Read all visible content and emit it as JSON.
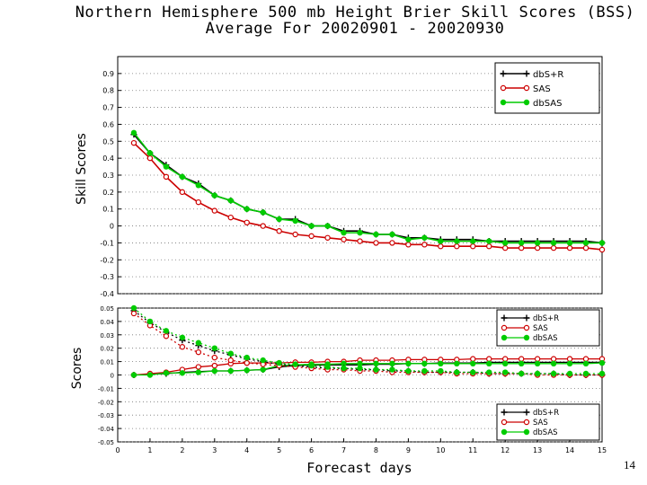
{
  "page_number": "14",
  "chart_data": [
    {
      "type": "line",
      "title": "Northern Hemisphere 500 mb Height Brier Skill Scores (BSS)",
      "subtitle": "Average For 20020901 - 20020930",
      "xlabel": "",
      "ylabel": "Skill Scores",
      "xlim": [
        0,
        15
      ],
      "ylim": [
        -0.4,
        1.0
      ],
      "yticks": [
        "0.9",
        "0.8",
        "0.7",
        "0.6",
        "0.5",
        "0.4",
        "0.3",
        "0.2",
        "0.1",
        "0",
        "-0.1",
        "-0.2",
        "-0.3",
        "-0.4"
      ],
      "ytick_values": [
        0.9,
        0.8,
        0.7,
        0.6,
        0.5,
        0.4,
        0.3,
        0.2,
        0.1,
        0,
        -0.1,
        -0.2,
        -0.3,
        -0.4
      ],
      "legend_position": "top-right",
      "x": [
        0.5,
        1.0,
        1.5,
        2.0,
        2.5,
        3.0,
        3.5,
        4.0,
        4.5,
        5.0,
        5.5,
        6.0,
        6.5,
        7.0,
        7.5,
        8.0,
        8.5,
        9.0,
        9.5,
        10.0,
        10.5,
        11.0,
        11.5,
        12.0,
        12.5,
        13.0,
        13.5,
        14.0,
        14.5,
        15.0
      ],
      "series": [
        {
          "name": "dbS+R",
          "color": "#000000",
          "marker": "plus",
          "linestyle": "solid",
          "values": [
            0.54,
            0.43,
            0.36,
            0.29,
            0.25,
            0.18,
            0.15,
            0.1,
            0.08,
            0.04,
            0.04,
            0.0,
            0.0,
            -0.03,
            -0.03,
            -0.05,
            -0.05,
            -0.07,
            -0.07,
            -0.08,
            -0.08,
            -0.08,
            -0.09,
            -0.09,
            -0.09,
            -0.09,
            -0.09,
            -0.09,
            -0.09,
            -0.1
          ]
        },
        {
          "name": "SAS",
          "color": "#cc0000",
          "marker": "circle-open",
          "linestyle": "solid",
          "values": [
            0.49,
            0.4,
            0.29,
            0.2,
            0.14,
            0.09,
            0.05,
            0.02,
            0.0,
            -0.03,
            -0.05,
            -0.06,
            -0.07,
            -0.08,
            -0.09,
            -0.1,
            -0.1,
            -0.11,
            -0.11,
            -0.12,
            -0.12,
            -0.12,
            -0.12,
            -0.13,
            -0.13,
            -0.13,
            -0.13,
            -0.13,
            -0.13,
            -0.14
          ]
        },
        {
          "name": "dbSAS",
          "color": "#00cc00",
          "marker": "circle-filled",
          "linestyle": "solid",
          "values": [
            0.55,
            0.43,
            0.35,
            0.29,
            0.24,
            0.18,
            0.15,
            0.1,
            0.08,
            0.04,
            0.03,
            0.0,
            0.0,
            -0.04,
            -0.04,
            -0.05,
            -0.05,
            -0.08,
            -0.07,
            -0.09,
            -0.09,
            -0.09,
            -0.09,
            -0.1,
            -0.1,
            -0.1,
            -0.1,
            -0.1,
            -0.1,
            -0.1
          ]
        }
      ]
    },
    {
      "type": "line",
      "title": "",
      "xlabel": "Forecast days",
      "ylabel": "Scores",
      "xlim": [
        0,
        15
      ],
      "ylim": [
        -0.05,
        0.05
      ],
      "yticks": [
        "0.05",
        "0.04",
        "0.03",
        "0.02",
        "0.01",
        "0",
        "-0.01",
        "-0.02",
        "-0.03",
        "-0.04",
        "-0.05"
      ],
      "ytick_values": [
        0.05,
        0.04,
        0.03,
        0.02,
        0.01,
        0,
        -0.01,
        -0.02,
        -0.03,
        -0.04,
        -0.05
      ],
      "xticks": [
        "0",
        "1",
        "2",
        "3",
        "4",
        "5",
        "6",
        "7",
        "8",
        "9",
        "10",
        "11",
        "12",
        "13",
        "14",
        "15"
      ],
      "xtick_values": [
        0,
        1,
        2,
        3,
        4,
        5,
        6,
        7,
        8,
        9,
        10,
        11,
        12,
        13,
        14,
        15
      ],
      "legend_position": "top-right and bottom-right",
      "legend_entries": [
        "dbS+R",
        "SAS",
        "dbSAS"
      ],
      "x": [
        0.5,
        1.0,
        1.5,
        2.0,
        2.5,
        3.0,
        3.5,
        4.0,
        4.5,
        5.0,
        5.5,
        6.0,
        6.5,
        7.0,
        7.5,
        8.0,
        8.5,
        9.0,
        9.5,
        10.0,
        10.5,
        11.0,
        11.5,
        12.0,
        12.5,
        13.0,
        13.5,
        14.0,
        14.5,
        15.0
      ],
      "series": [
        {
          "name": "dbS+R",
          "color": "#000000",
          "marker": "plus",
          "linestyle": "solid",
          "group": "lower",
          "values": [
            0.0,
            0.0005,
            0.001,
            0.002,
            0.0025,
            0.003,
            0.003,
            0.0035,
            0.004,
            0.006,
            0.007,
            0.0075,
            0.0075,
            0.0075,
            0.0075,
            0.008,
            0.008,
            0.0085,
            0.0085,
            0.009,
            0.009,
            0.009,
            0.0095,
            0.0095,
            0.0095,
            0.0095,
            0.0095,
            0.0095,
            0.0095,
            0.0095
          ]
        },
        {
          "name": "SAS",
          "color": "#cc0000",
          "marker": "circle-open",
          "linestyle": "solid",
          "group": "lower",
          "values": [
            0.0,
            0.001,
            0.002,
            0.004,
            0.006,
            0.007,
            0.0085,
            0.009,
            0.009,
            0.009,
            0.0095,
            0.0095,
            0.01,
            0.01,
            0.011,
            0.011,
            0.011,
            0.0115,
            0.0115,
            0.0115,
            0.0115,
            0.012,
            0.012,
            0.012,
            0.012,
            0.012,
            0.012,
            0.012,
            0.012,
            0.012
          ]
        },
        {
          "name": "dbSAS",
          "color": "#00cc00",
          "marker": "circle-filled",
          "linestyle": "solid",
          "group": "lower",
          "values": [
            0.0,
            0.0,
            0.0015,
            0.0015,
            0.002,
            0.003,
            0.003,
            0.0035,
            0.004,
            0.007,
            0.0075,
            0.008,
            0.008,
            0.0085,
            0.0085,
            0.0085,
            0.0085,
            0.0085,
            0.0085,
            0.0085,
            0.0085,
            0.0085,
            0.0085,
            0.0085,
            0.0085,
            0.0085,
            0.0085,
            0.0085,
            0.0085,
            0.009
          ]
        },
        {
          "name": "dbS+R",
          "color": "#000000",
          "marker": "plus",
          "linestyle": "dotted",
          "group": "upper",
          "values": [
            0.048,
            0.039,
            0.032,
            0.026,
            0.022,
            0.018,
            0.015,
            0.012,
            0.01,
            0.008,
            0.007,
            0.006,
            0.005,
            0.005,
            0.004,
            0.004,
            0.003,
            0.003,
            0.002,
            0.002,
            0.002,
            0.002,
            0.001,
            0.001,
            0.001,
            0.001,
            0.001,
            0.0,
            0.0,
            0.0
          ]
        },
        {
          "name": "SAS",
          "color": "#cc0000",
          "marker": "circle-open",
          "linestyle": "dotted",
          "group": "upper",
          "values": [
            0.046,
            0.037,
            0.029,
            0.021,
            0.017,
            0.013,
            0.011,
            0.009,
            0.008,
            0.007,
            0.006,
            0.005,
            0.004,
            0.004,
            0.003,
            0.003,
            0.002,
            0.002,
            0.002,
            0.002,
            0.001,
            0.001,
            0.001,
            0.001,
            0.001,
            0.0,
            0.0,
            0.0,
            0.0,
            0.0
          ]
        },
        {
          "name": "dbSAS",
          "color": "#00cc00",
          "marker": "circle-filled",
          "linestyle": "dotted",
          "group": "upper",
          "values": [
            0.05,
            0.04,
            0.033,
            0.028,
            0.024,
            0.02,
            0.016,
            0.013,
            0.011,
            0.009,
            0.008,
            0.007,
            0.006,
            0.005,
            0.005,
            0.004,
            0.004,
            0.003,
            0.003,
            0.003,
            0.002,
            0.002,
            0.002,
            0.002,
            0.001,
            0.001,
            0.001,
            0.001,
            0.001,
            0.001
          ]
        }
      ]
    }
  ]
}
